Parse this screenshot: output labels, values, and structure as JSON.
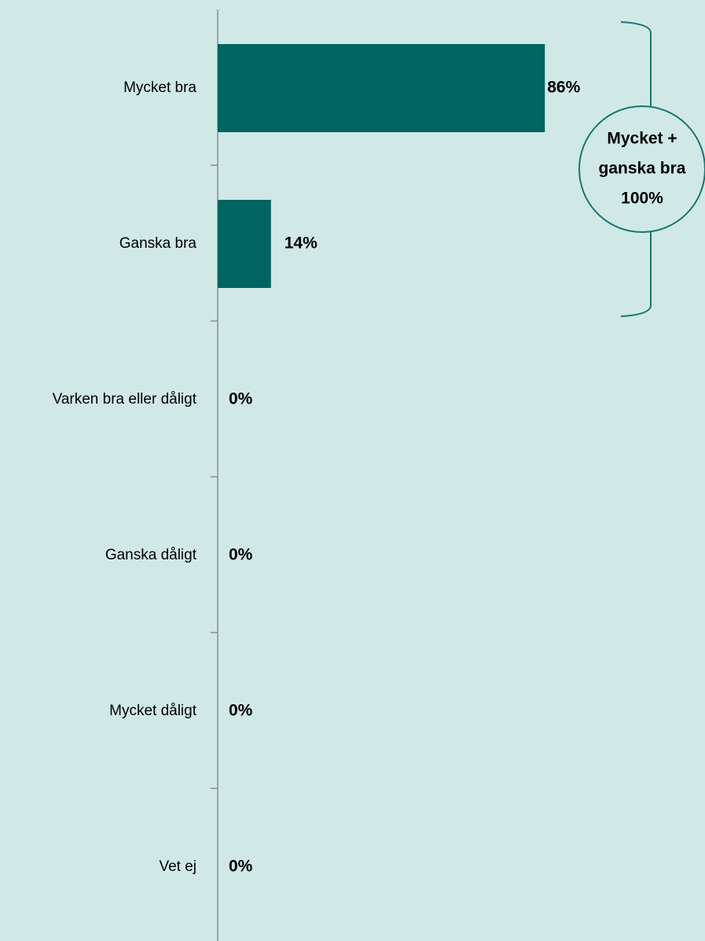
{
  "chart_data": {
    "type": "barh",
    "categories": [
      "Mycket bra",
      "Ganska bra",
      "Varken bra eller dåligt",
      "Ganska dåligt",
      "Mycket dåligt",
      "Vet ej"
    ],
    "values": [
      86,
      14,
      0,
      0,
      0,
      0
    ],
    "value_labels": [
      "86%",
      "14%",
      "0%",
      "0%",
      "0%",
      "0%"
    ],
    "color": "#006461",
    "annotation": [
      "Mycket +",
      "ganska bra",
      "100%"
    ]
  }
}
